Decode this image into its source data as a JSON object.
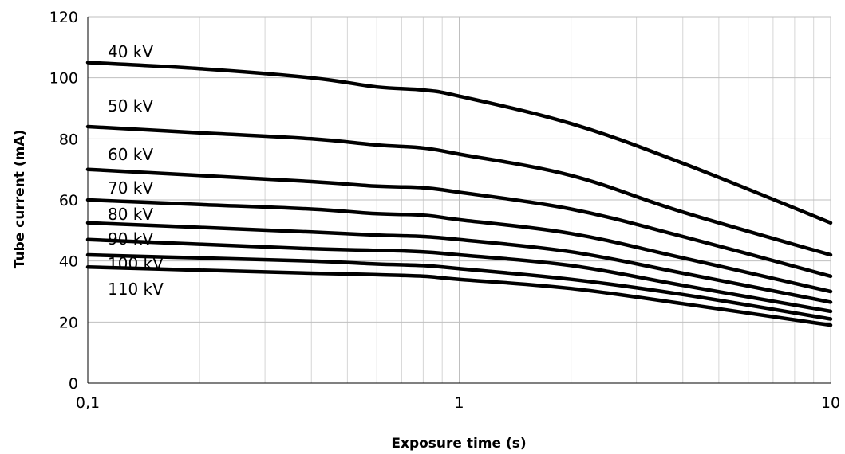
{
  "chart_data": {
    "type": "line",
    "xscale": "log",
    "xlabel": "Exposure time (s)",
    "ylabel": "Tube current (mA)",
    "xlim": [
      0.1,
      10
    ],
    "ylim": [
      0,
      120
    ],
    "xticks": [
      {
        "value": 0.1,
        "label": "0,1"
      },
      {
        "value": 1,
        "label": "1"
      },
      {
        "value": 10,
        "label": "10"
      }
    ],
    "yticks": [
      {
        "value": 0,
        "label": "0"
      },
      {
        "value": 20,
        "label": "20"
      },
      {
        "value": 40,
        "label": "40"
      },
      {
        "value": 60,
        "label": "60"
      },
      {
        "value": 80,
        "label": "80"
      },
      {
        "value": 100,
        "label": "100"
      },
      {
        "value": 120,
        "label": "120"
      }
    ],
    "grid": true,
    "legend": "none",
    "line_color": "#000000",
    "x": [
      0.1,
      0.2,
      0.4,
      0.6,
      0.8,
      1,
      2,
      4,
      10
    ],
    "series": [
      {
        "name": "40 kV",
        "values": [
          105,
          103,
          100,
          97,
          96,
          94,
          85,
          72,
          52.5
        ]
      },
      {
        "name": "50 kV",
        "values": [
          84,
          82,
          80,
          78,
          77,
          75,
          68,
          56,
          42
        ]
      },
      {
        "name": "60 kV",
        "values": [
          70,
          68,
          66,
          64.5,
          64,
          62.5,
          57,
          48,
          35
        ]
      },
      {
        "name": "70 kV",
        "values": [
          60,
          58.5,
          57,
          55.5,
          55,
          53.5,
          49,
          41,
          30
        ]
      },
      {
        "name": "80 kV",
        "values": [
          52.5,
          51,
          49.5,
          48.5,
          48,
          47,
          43,
          36,
          26.5
        ]
      },
      {
        "name": "90 kV",
        "values": [
          47,
          45.5,
          44,
          43.5,
          43,
          42,
          38.5,
          32,
          23.5
        ]
      },
      {
        "name": "100 kV",
        "values": [
          42,
          41,
          40,
          39,
          38.5,
          37.5,
          34,
          29,
          21
        ]
      },
      {
        "name": "110 kV",
        "values": [
          38,
          37,
          36,
          35.5,
          35,
          34,
          31,
          26,
          19
        ]
      }
    ]
  }
}
